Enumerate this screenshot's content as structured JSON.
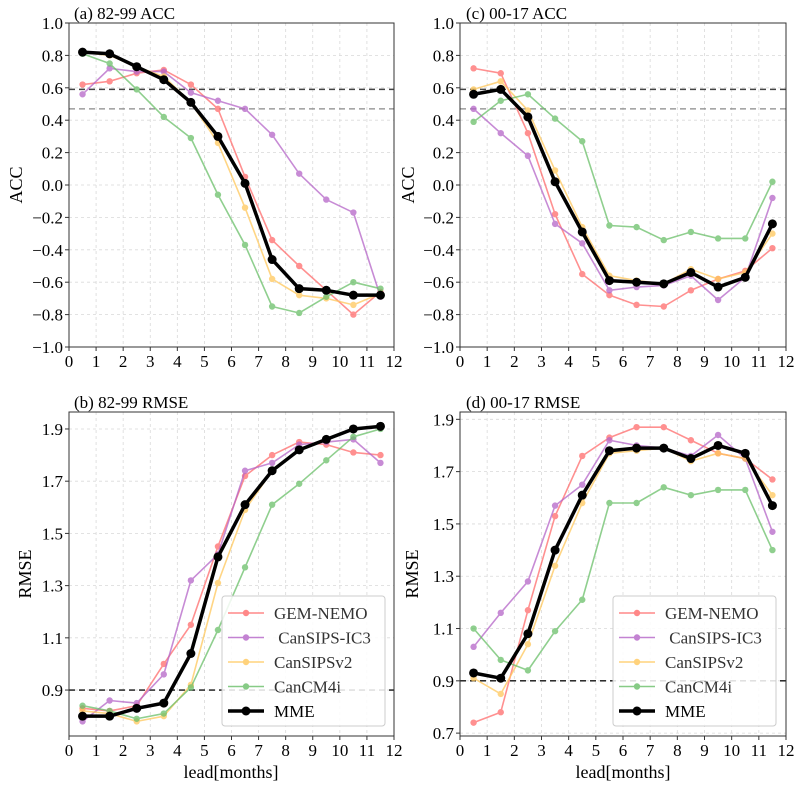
{
  "chart_data": [
    {
      "type": "line",
      "title": "(a) 82-99 ACC",
      "xlabel": "",
      "ylabel": "ACC",
      "xlim": [
        0,
        12
      ],
      "ylim": [
        -1.0,
        1.0
      ],
      "xticks": [
        "0",
        "1",
        "2",
        "3",
        "4",
        "5",
        "6",
        "7",
        "8",
        "9",
        "10",
        "11",
        "12"
      ],
      "yticks": [
        "1.0",
        "0.8",
        "0.6",
        "0.4",
        "0.2",
        "0.0",
        "−0.2",
        "−0.4",
        "−0.6",
        "−0.8",
        "−1.0"
      ],
      "ytick_values": [
        1.0,
        0.8,
        0.6,
        0.4,
        0.2,
        0.0,
        -0.2,
        -0.4,
        -0.6,
        -0.8,
        -1.0
      ],
      "grid": true,
      "reference_lines": [
        {
          "y": 0.59,
          "style": "dark-dashed"
        },
        {
          "y": 0.47,
          "style": "gray-dashed"
        }
      ],
      "x": [
        0.5,
        1.5,
        2.5,
        3.5,
        4.5,
        5.5,
        6.5,
        7.5,
        8.5,
        9.5,
        10.5,
        11.5
      ],
      "series": [
        {
          "name": "GEM-NEMO",
          "values": [
            0.62,
            0.64,
            0.69,
            0.71,
            0.62,
            0.47,
            0.05,
            -0.34,
            -0.5,
            -0.65,
            -0.8,
            -0.66
          ]
        },
        {
          "name": " CanSIPS-IC3",
          "values": [
            0.56,
            0.72,
            0.7,
            0.7,
            0.57,
            0.52,
            0.47,
            0.31,
            0.07,
            -0.09,
            -0.17,
            -0.69
          ]
        },
        {
          "name": "CanSIPSv2",
          "values": [
            0.82,
            0.8,
            0.73,
            0.67,
            0.51,
            0.26,
            -0.14,
            -0.58,
            -0.68,
            -0.7,
            -0.74,
            -0.67
          ]
        },
        {
          "name": "CanCM4i",
          "values": [
            0.81,
            0.75,
            0.59,
            0.42,
            0.29,
            -0.06,
            -0.37,
            -0.75,
            -0.79,
            -0.69,
            -0.6,
            -0.64
          ]
        },
        {
          "name": "MME",
          "values": [
            0.82,
            0.81,
            0.73,
            0.65,
            0.51,
            0.3,
            0.01,
            -0.46,
            -0.64,
            -0.65,
            -0.68,
            -0.68
          ]
        }
      ],
      "legend": false
    },
    {
      "type": "line",
      "title": "(c) 00-17 ACC",
      "xlabel": "",
      "ylabel": "ACC",
      "xlim": [
        0,
        12
      ],
      "ylim": [
        -1.0,
        1.0
      ],
      "xticks": [
        "0",
        "1",
        "2",
        "3",
        "4",
        "5",
        "6",
        "7",
        "8",
        "9",
        "10",
        "11",
        "12"
      ],
      "yticks": [
        "1.0",
        "0.8",
        "0.6",
        "0.4",
        "0.2",
        "0.0",
        "−0.2",
        "−0.4",
        "−0.6",
        "−0.8",
        "−1.0"
      ],
      "ytick_values": [
        1.0,
        0.8,
        0.6,
        0.4,
        0.2,
        0.0,
        -0.2,
        -0.4,
        -0.6,
        -0.8,
        -1.0
      ],
      "grid": true,
      "reference_lines": [
        {
          "y": 0.59,
          "style": "dark-dashed"
        },
        {
          "y": 0.47,
          "style": "gray-dashed"
        }
      ],
      "x": [
        0.5,
        1.5,
        2.5,
        3.5,
        4.5,
        5.5,
        6.5,
        7.5,
        8.5,
        9.5,
        10.5,
        11.5
      ],
      "series": [
        {
          "name": "GEM-NEMO",
          "values": [
            0.72,
            0.69,
            0.32,
            -0.18,
            -0.55,
            -0.68,
            -0.74,
            -0.75,
            -0.65,
            -0.58,
            -0.53,
            -0.39
          ]
        },
        {
          "name": " CanSIPS-IC3",
          "values": [
            0.47,
            0.32,
            0.18,
            -0.24,
            -0.36,
            -0.65,
            -0.63,
            -0.62,
            -0.56,
            -0.71,
            -0.57,
            -0.08
          ]
        },
        {
          "name": "CanSIPSv2",
          "values": [
            0.59,
            0.64,
            0.46,
            0.09,
            -0.26,
            -0.56,
            -0.59,
            -0.61,
            -0.52,
            -0.58,
            -0.54,
            -0.3
          ]
        },
        {
          "name": "CanCM4i",
          "values": [
            0.39,
            0.52,
            0.56,
            0.41,
            0.27,
            -0.25,
            -0.26,
            -0.34,
            -0.29,
            -0.33,
            -0.33,
            0.02
          ]
        },
        {
          "name": "MME",
          "values": [
            0.56,
            0.59,
            0.42,
            0.02,
            -0.29,
            -0.59,
            -0.6,
            -0.61,
            -0.54,
            -0.63,
            -0.57,
            -0.24
          ]
        }
      ],
      "legend": false
    },
    {
      "type": "line",
      "title": "(b) 82-99 RMSE",
      "xlabel": "lead[months]",
      "ylabel": "RMSE",
      "xlim": [
        0,
        12
      ],
      "ylim": [
        0.724,
        1.965
      ],
      "xticks": [
        "0",
        "1",
        "2",
        "3",
        "4",
        "5",
        "6",
        "7",
        "8",
        "9",
        "10",
        "11",
        "12"
      ],
      "yticks": [
        "1.9",
        "1.7",
        "1.5",
        "1.3",
        "1.1",
        "0.9"
      ],
      "ytick_values": [
        1.9,
        1.7,
        1.5,
        1.3,
        1.1,
        0.9
      ],
      "grid": true,
      "reference_lines": [
        {
          "y": 0.9,
          "style": "black-dashed"
        }
      ],
      "x": [
        0.5,
        1.5,
        2.5,
        3.5,
        4.5,
        5.5,
        6.5,
        7.5,
        8.5,
        9.5,
        10.5,
        11.5
      ],
      "series": [
        {
          "name": "GEM-NEMO",
          "values": [
            0.83,
            0.82,
            0.84,
            1.0,
            1.15,
            1.45,
            1.72,
            1.8,
            1.85,
            1.84,
            1.81,
            1.8
          ]
        },
        {
          "name": " CanSIPS-IC3",
          "values": [
            0.78,
            0.86,
            0.85,
            0.96,
            1.32,
            1.42,
            1.74,
            1.77,
            1.84,
            1.85,
            1.86,
            1.77
          ]
        },
        {
          "name": "CanSIPSv2",
          "values": [
            0.82,
            0.81,
            0.78,
            0.8,
            0.92,
            1.31,
            1.59,
            1.74,
            1.82,
            1.86,
            1.9,
            1.91
          ]
        },
        {
          "name": "CanCM4i",
          "values": [
            0.84,
            0.82,
            0.79,
            0.81,
            0.91,
            1.13,
            1.37,
            1.61,
            1.69,
            1.78,
            1.87,
            1.9
          ]
        },
        {
          "name": "MME",
          "values": [
            0.8,
            0.8,
            0.83,
            0.85,
            1.04,
            1.41,
            1.61,
            1.74,
            1.82,
            1.86,
            1.9,
            1.91
          ]
        }
      ],
      "legend": true,
      "legend_placement": "lower-right"
    },
    {
      "type": "line",
      "title": "(d) 00-17 RMSE",
      "xlabel": "lead[months]",
      "ylabel": "RMSE",
      "xlim": [
        0,
        12
      ],
      "ylim": [
        0.689,
        1.928
      ],
      "xticks": [
        "0",
        "1",
        "2",
        "3",
        "4",
        "5",
        "6",
        "7",
        "8",
        "9",
        "10",
        "11",
        "12"
      ],
      "yticks": [
        "1.9",
        "1.7",
        "1.5",
        "1.3",
        "1.1",
        "0.9",
        "0.7"
      ],
      "ytick_values": [
        1.9,
        1.7,
        1.5,
        1.3,
        1.1,
        0.9,
        0.7
      ],
      "grid": true,
      "reference_lines": [
        {
          "y": 0.9,
          "style": "black-dashed"
        }
      ],
      "x": [
        0.5,
        1.5,
        2.5,
        3.5,
        4.5,
        5.5,
        6.5,
        7.5,
        8.5,
        9.5,
        10.5,
        11.5
      ],
      "series": [
        {
          "name": "GEM-NEMO",
          "values": [
            0.74,
            0.78,
            1.17,
            1.53,
            1.76,
            1.83,
            1.87,
            1.87,
            1.82,
            1.77,
            1.75,
            1.67
          ]
        },
        {
          "name": " CanSIPS-IC3",
          "values": [
            1.03,
            1.16,
            1.28,
            1.57,
            1.65,
            1.82,
            1.8,
            1.79,
            1.76,
            1.84,
            1.75,
            1.47
          ]
        },
        {
          "name": "CanSIPSv2",
          "values": [
            0.91,
            0.85,
            1.04,
            1.34,
            1.58,
            1.77,
            1.78,
            1.79,
            1.74,
            1.77,
            1.75,
            1.61
          ]
        },
        {
          "name": "CanCM4i",
          "values": [
            1.1,
            0.98,
            0.94,
            1.09,
            1.21,
            1.58,
            1.58,
            1.64,
            1.61,
            1.63,
            1.63,
            1.4
          ]
        },
        {
          "name": "MME",
          "values": [
            0.93,
            0.91,
            1.08,
            1.4,
            1.61,
            1.78,
            1.79,
            1.79,
            1.75,
            1.8,
            1.77,
            1.57
          ]
        }
      ],
      "legend": true,
      "legend_placement": "lower-right"
    }
  ],
  "series_colors": {
    "GEM-NEMO": "#ff6b6b",
    " CanSIPS-IC3": "#b565c8",
    "CanSIPSv2": "#ffc85c",
    "CanCM4i": "#6abf69",
    "MME": "#000000"
  }
}
